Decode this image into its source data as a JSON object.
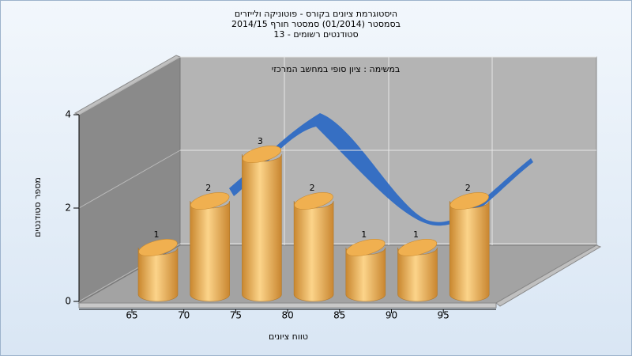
{
  "chart_data": {
    "type": "bar",
    "title": [
      "היסטוגרמת ציונים בקורס - פוטוניקה ולייזרים",
      "בסמסטר  (01/2014)  סמסטר חורף 2014/15",
      "סטודנטים רשומים - 13"
    ],
    "annotation": "במשימה : ציון סופי במחשב המרכזי",
    "x_label": "טווח ציונים",
    "y_label": "מספר סטודנטים",
    "categories": [
      "65",
      "70",
      "75",
      "80",
      "85",
      "90",
      "95"
    ],
    "values": [
      1,
      2,
      3,
      2,
      1,
      1,
      2
    ],
    "color": "#f0b050",
    "ylim": [
      0,
      4
    ],
    "yticks": [
      0,
      2,
      4
    ],
    "grid": true
  }
}
